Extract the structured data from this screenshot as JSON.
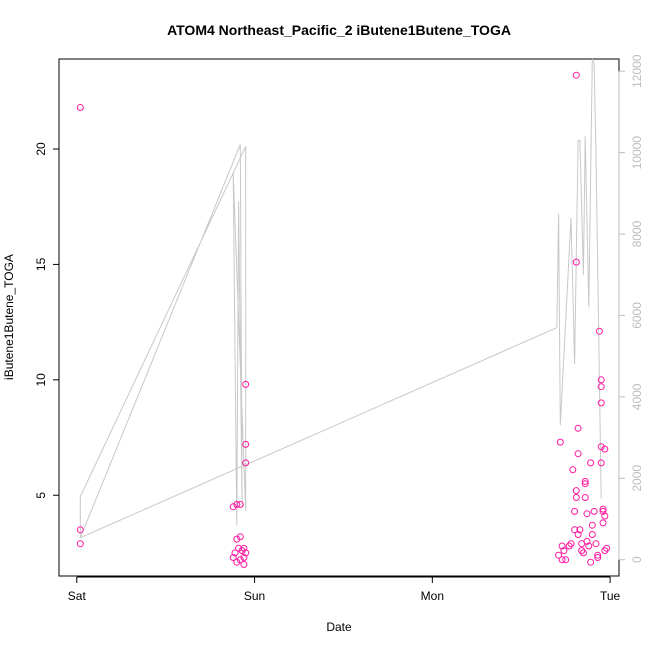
{
  "chart_data": {
    "type": "scatter",
    "title": "ATOM4 Northeast_Pacific_2 iButene1Butene_TOGA",
    "xlabel": "Date",
    "ylabel": "iButene1Butene_TOGA",
    "x_unit": "days",
    "x_ticks": [
      {
        "value": 0,
        "label": "Sat"
      },
      {
        "value": 1,
        "label": "Sun"
      },
      {
        "value": 2,
        "label": "Mon"
      },
      {
        "value": 3,
        "label": "Tue"
      }
    ],
    "xlim": [
      -0.1,
      3.05
    ],
    "ylim": [
      1.5,
      23.9
    ],
    "y_ticks": [
      5,
      10,
      15,
      20
    ],
    "y2lim": [
      -400,
      12300
    ],
    "y2_ticks": [
      0,
      2000,
      4000,
      6000,
      8000,
      10000,
      12000
    ],
    "grid": false,
    "point_color": "#ff1aa0",
    "line_color": "#c8c8c8",
    "series": [
      {
        "type": "scatter",
        "axis": "left",
        "points": [
          [
            0.02,
            21.8
          ],
          [
            0.02,
            3.5
          ],
          [
            0.02,
            2.9
          ],
          [
            0.88,
            4.5
          ],
          [
            0.9,
            4.6
          ],
          [
            0.92,
            4.6
          ],
          [
            0.9,
            3.1
          ],
          [
            0.92,
            3.2
          ],
          [
            0.91,
            2.7
          ],
          [
            0.89,
            2.5
          ],
          [
            0.88,
            2.3
          ],
          [
            0.9,
            2.1
          ],
          [
            0.92,
            2.2
          ],
          [
            0.93,
            2.6
          ],
          [
            0.94,
            2.7
          ],
          [
            0.95,
            2.5
          ],
          [
            0.94,
            2.3
          ],
          [
            0.94,
            2.0
          ],
          [
            0.95,
            9.8
          ],
          [
            0.95,
            7.2
          ],
          [
            0.95,
            6.4
          ],
          [
            2.72,
            7.3
          ],
          [
            2.71,
            2.4
          ],
          [
            2.73,
            2.8
          ],
          [
            2.74,
            2.6
          ],
          [
            2.73,
            2.2
          ],
          [
            2.75,
            2.2
          ],
          [
            2.77,
            2.8
          ],
          [
            2.78,
            2.9
          ],
          [
            2.79,
            6.1
          ],
          [
            2.8,
            4.3
          ],
          [
            2.8,
            3.5
          ],
          [
            2.81,
            15.1
          ],
          [
            2.81,
            5.2
          ],
          [
            2.81,
            4.9
          ],
          [
            2.82,
            7.9
          ],
          [
            2.82,
            6.8
          ],
          [
            2.82,
            3.3
          ],
          [
            2.81,
            23.2
          ],
          [
            2.83,
            3.5
          ],
          [
            2.84,
            2.9
          ],
          [
            2.84,
            2.6
          ],
          [
            2.85,
            2.5
          ],
          [
            2.86,
            5.6
          ],
          [
            2.86,
            5.5
          ],
          [
            2.86,
            4.9
          ],
          [
            2.87,
            4.2
          ],
          [
            2.87,
            3.0
          ],
          [
            2.88,
            2.8
          ],
          [
            2.89,
            2.1
          ],
          [
            2.89,
            6.4
          ],
          [
            2.9,
            3.7
          ],
          [
            2.9,
            3.3
          ],
          [
            2.91,
            4.3
          ],
          [
            2.92,
            2.9
          ],
          [
            2.93,
            2.4
          ],
          [
            2.93,
            2.3
          ],
          [
            2.94,
            12.1
          ],
          [
            2.95,
            10.0
          ],
          [
            2.95,
            9.7
          ],
          [
            2.95,
            9.0
          ],
          [
            2.95,
            7.1
          ],
          [
            2.95,
            6.4
          ],
          [
            2.96,
            4.4
          ],
          [
            2.96,
            4.3
          ],
          [
            2.96,
            3.8
          ],
          [
            2.97,
            7.0
          ],
          [
            2.97,
            4.1
          ],
          [
            2.97,
            2.6
          ],
          [
            2.98,
            2.7
          ]
        ]
      },
      {
        "type": "line",
        "axis": "right",
        "points": [
          [
            0.02,
            1520
          ],
          [
            0.02,
            540
          ],
          [
            0.02,
            1550
          ],
          [
            0.95,
            10150
          ],
          [
            0.95,
            1200
          ],
          [
            0.88,
            9500
          ],
          [
            0.9,
            850
          ],
          [
            0.91,
            8800
          ],
          [
            0.93,
            1300
          ],
          [
            0.92,
            10200
          ],
          [
            0.02,
            540
          ],
          [
            2.7,
            5700
          ],
          [
            2.71,
            8500
          ],
          [
            2.72,
            3300
          ],
          [
            2.78,
            8400
          ],
          [
            2.8,
            4800
          ],
          [
            2.82,
            10300
          ],
          [
            2.83,
            10300
          ],
          [
            2.85,
            7000
          ],
          [
            2.86,
            10400
          ],
          [
            2.88,
            6200
          ],
          [
            2.9,
            12300
          ],
          [
            2.91,
            12200
          ],
          [
            2.92,
            10100
          ],
          [
            2.95,
            1500
          ]
        ]
      }
    ]
  }
}
